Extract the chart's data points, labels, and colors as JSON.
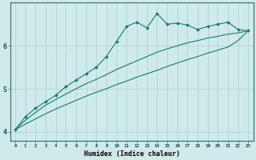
{
  "xlabel": "Humidex (Indice chaleur)",
  "ylabel": "",
  "background_color": "#ceeaea",
  "grid_color": "#add0d0",
  "line_color": "#1a7a6e",
  "x_values": [
    0,
    1,
    2,
    3,
    4,
    5,
    6,
    7,
    8,
    9,
    10,
    11,
    12,
    13,
    14,
    15,
    16,
    17,
    18,
    19,
    20,
    21,
    22,
    23
  ],
  "y_line1": [
    4.05,
    4.35,
    4.55,
    4.7,
    4.85,
    5.05,
    5.2,
    5.35,
    5.5,
    5.75,
    6.1,
    6.45,
    6.55,
    6.42,
    6.75,
    6.5,
    6.53,
    6.48,
    6.38,
    6.45,
    6.5,
    6.55,
    6.38,
    6.35
  ],
  "y_line2": [
    4.05,
    4.27,
    4.45,
    4.62,
    4.75,
    4.88,
    5.0,
    5.12,
    5.22,
    5.33,
    5.45,
    5.55,
    5.65,
    5.75,
    5.85,
    5.93,
    6.0,
    6.07,
    6.12,
    6.18,
    6.22,
    6.27,
    6.3,
    6.35
  ],
  "y_line3": [
    4.05,
    4.18,
    4.3,
    4.42,
    4.53,
    4.63,
    4.73,
    4.83,
    4.92,
    5.0,
    5.1,
    5.18,
    5.27,
    5.35,
    5.43,
    5.52,
    5.6,
    5.68,
    5.75,
    5.83,
    5.9,
    5.97,
    6.12,
    6.35
  ],
  "ylim": [
    3.8,
    7.0
  ],
  "xlim": [
    -0.5,
    23.5
  ],
  "yticks": [
    4,
    5,
    6
  ],
  "xticks": [
    0,
    1,
    2,
    3,
    4,
    5,
    6,
    7,
    8,
    9,
    10,
    11,
    12,
    13,
    14,
    15,
    16,
    17,
    18,
    19,
    20,
    21,
    22,
    23
  ],
  "xtick_fontsize": 4.2,
  "ytick_fontsize": 6.0,
  "xlabel_fontsize": 6.0
}
